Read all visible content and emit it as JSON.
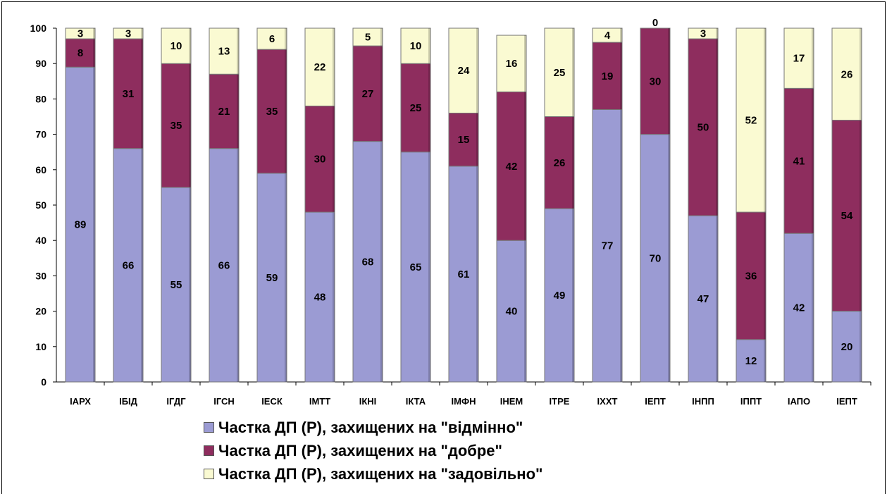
{
  "chart_data": {
    "type": "bar",
    "stacked": true,
    "categories": [
      "ІАРХ",
      "ІБІД",
      "ІГДГ",
      "ІГСН",
      "ІЕСК",
      "ІМТТ",
      "ІКНІ",
      "ІКТА",
      "ІМФН",
      "ІНЕМ",
      "ІТРЕ",
      "ІХХТ",
      "ІЕПТ",
      "ІНПП",
      "ІППТ",
      "ІАПО",
      "ІЕПТ"
    ],
    "series": [
      {
        "name": "Частка ДП (Р), захищених на \"відмінно\"",
        "color": "#9b9bd3",
        "values": [
          89,
          66,
          55,
          66,
          59,
          48,
          68,
          65,
          61,
          40,
          49,
          77,
          70,
          47,
          12,
          42,
          20
        ]
      },
      {
        "name": "Частка ДП (Р), захищених на \"добре\"",
        "color": "#8e2d5e",
        "values": [
          8,
          31,
          35,
          21,
          35,
          30,
          27,
          25,
          15,
          42,
          26,
          19,
          30,
          50,
          36,
          41,
          54
        ]
      },
      {
        "name": "Частка ДП (Р), захищених на \"задовільно\"",
        "color": "#fafad2",
        "values": [
          3,
          3,
          10,
          13,
          6,
          22,
          5,
          10,
          24,
          16,
          25,
          4,
          0,
          3,
          52,
          17,
          26
        ]
      }
    ],
    "yticks": [
      "0",
      "10",
      "20",
      "30",
      "40",
      "50",
      "60",
      "70",
      "80",
      "90",
      "100"
    ],
    "ylim": [
      0,
      100
    ],
    "grid": false,
    "legend_position": "bottom"
  }
}
